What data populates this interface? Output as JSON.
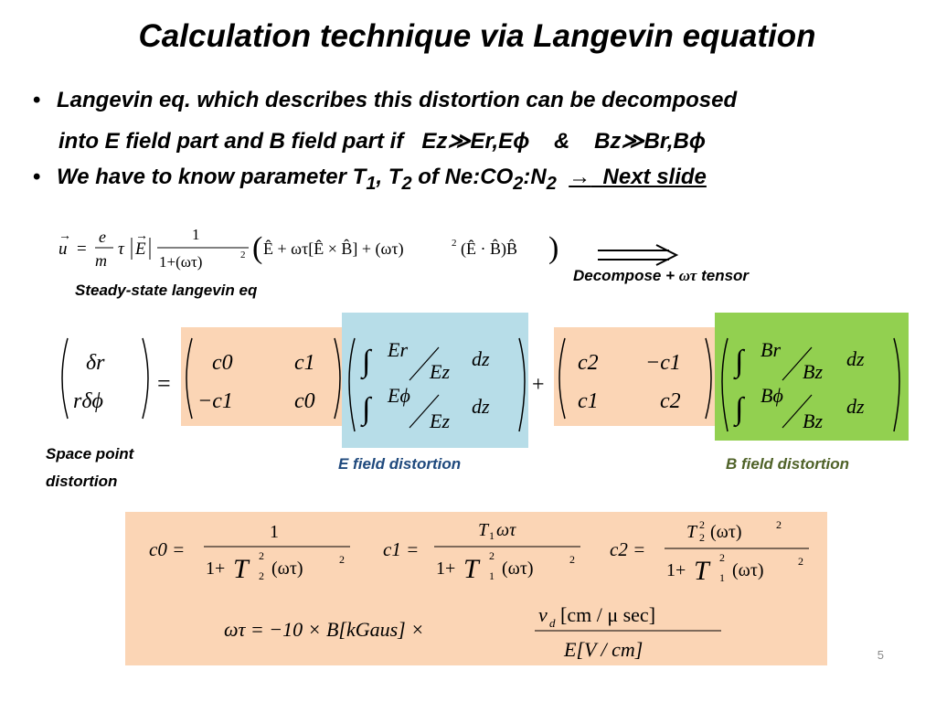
{
  "slide": {
    "title": "Calculation technique via Langevin equation",
    "bullet1_line1": "Langevin eq. which describes this distortion can be decomposed",
    "bullet1_line2_a": "into E field part and B field part if",
    "bullet1_line2_cond1": "Ez≫Er,Eϕ",
    "bullet1_line2_amp": "&",
    "bullet1_line2_cond2": "Bz≫Br,Bϕ",
    "bullet2_a": "We have to know parameter T",
    "bullet2_sub1": "1",
    "bullet2_b": ", T",
    "bullet2_sub2": "2",
    "bullet2_c": " of Ne:CO",
    "bullet2_sub3": "2",
    "bullet2_d": ":N",
    "bullet2_sub4": "2",
    "bullet2_arrow": "→",
    "bullet2_next": "Next slide",
    "steady_label": "Steady-state langevin eq",
    "decompose_label_a": "Decompose +",
    "decompose_label_omegatau": "ωτ",
    "decompose_label_b": "tensor",
    "space_point_line1": "Space point",
    "space_point_line2": "distortion",
    "e_field_label": "E field distortion",
    "b_field_label": "B field distortion",
    "page_number": "5"
  },
  "colors": {
    "orange_box": "#fbd5b5",
    "blue_box": "#b7dde8",
    "green_box": "#92d050",
    "e_label": "#1f497d",
    "b_label": "#4f6228"
  },
  "equations": {
    "langevin": {
      "lhs": "u",
      "frac_num": "e",
      "frac_den": "m",
      "tau": "τ",
      "E": "E",
      "one": "1",
      "den": "1+(ωτ)",
      "bracket": "Ê + ωτ[Ê × B̂] + (ωτ)",
      "bracket_tail": "(Ê · B̂)B̂"
    },
    "matrix": {
      "dr": "δr",
      "rdphi": "rδϕ",
      "eq": "=",
      "c0": "c0",
      "c1": "c1",
      "neg_c1": "−c1",
      "c2": "c2",
      "plus": "+",
      "int": "∫",
      "Er": "Er",
      "Ez": "Ez",
      "Ephi": "Eϕ",
      "Br": "Br",
      "Bz": "Bz",
      "Bphi": "Bϕ",
      "dz": "dz"
    },
    "coefficients": {
      "c0_lhs": "c0 =",
      "c0_num": "1",
      "c0_den_a": "1+",
      "c0_den_T": "T",
      "c0_den_sup": "2",
      "c0_den_sub": "2",
      "c0_den_b": "(ωτ)",
      "c0_den_exp": "2",
      "c1_lhs": "c1 =",
      "c1_num_T": "T",
      "c1_num_sub": "1",
      "c1_num_b": "ωτ",
      "c1_den_a": "1+",
      "c1_den_T": "T",
      "c1_den_sup": "2",
      "c1_den_sub": "1",
      "c1_den_b": "(ωτ)",
      "c1_den_exp": "2",
      "c2_lhs": "c2 =",
      "c2_num_T": "T",
      "c2_num_sup": "2",
      "c2_num_sub": "2",
      "c2_num_b": "(ωτ)",
      "c2_num_exp": "2",
      "c2_den_a": "1+",
      "c2_den_T": "T",
      "c2_den_sup": "2",
      "c2_den_sub": "1",
      "c2_den_b": "(ωτ)",
      "c2_den_exp": "2",
      "wt_lhs": "ωτ = −10 × B[kGaus] ×",
      "wt_num_v": "v",
      "wt_num_sub": "d",
      "wt_num_b": "[cm / μ sec]",
      "wt_den": "E[V / cm]"
    }
  }
}
